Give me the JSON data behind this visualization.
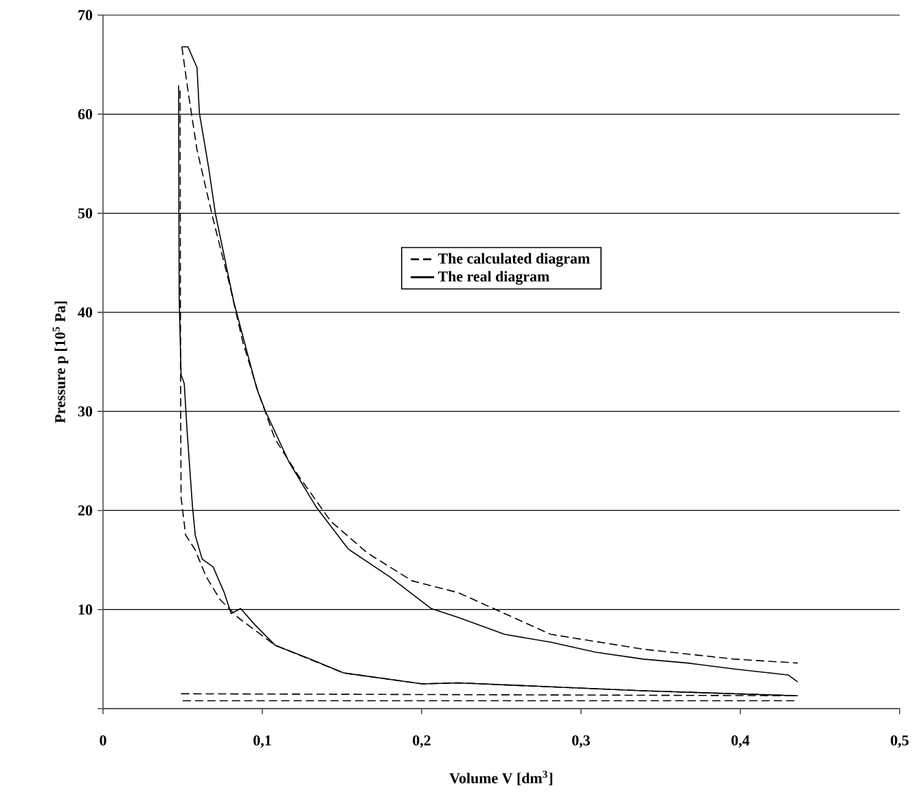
{
  "chart_data": {
    "type": "line",
    "xlabel": "Volume V [dm$^{3}$]",
    "ylabel": "Pressure p [10$^{5}$ Pa]",
    "xlim": [
      0,
      0.5
    ],
    "ylim": [
      0,
      70
    ],
    "xticks": [
      {
        "value": 0,
        "label": "0"
      },
      {
        "value": 0.1,
        "label": "0,1"
      },
      {
        "value": 0.2,
        "label": "0,2"
      },
      {
        "value": 0.3,
        "label": "0,3"
      },
      {
        "value": 0.4,
        "label": "0,4"
      },
      {
        "value": 0.5,
        "label": "0,5"
      }
    ],
    "yticks": [
      {
        "value": 0,
        "label": null
      },
      10,
      20,
      30,
      40,
      50,
      60,
      70
    ],
    "grid": "y",
    "legend": "top",
    "marker": "none",
    "series": [
      {
        "name": "The calculated diagram",
        "color": "#000000",
        "line_style": "dashed",
        "x": [
          0.0495,
          0.0533,
          0.059,
          0.0691,
          0.0793,
          0.0879,
          0.0977,
          0.108,
          0.1227,
          0.143,
          0.166,
          0.194,
          0.223,
          0.281,
          0.339,
          0.396,
          0.436
        ],
        "values": [
          66.8,
          62.4,
          56.4,
          49.4,
          42.9,
          36.9,
          31.8,
          27.2,
          23.5,
          18.9,
          15.7,
          12.9,
          11.7,
          7.5,
          6.0,
          5.0,
          4.6
        ]
      },
      {
        "color": "#000000",
        "line_style": "dashed",
        "x": [
          0.0484,
          0.0486,
          0.0488,
          0.049,
          0.0519,
          0.0576,
          0.0648,
          0.0735,
          0.0847,
          0.108,
          0.151,
          0.2005,
          0.223,
          0.281,
          0.339,
          0.436
        ],
        "values": [
          62.4,
          39.3,
          28.2,
          21.3,
          17.5,
          16.1,
          13.3,
          11.0,
          9.2,
          6.4,
          3.6,
          2.5,
          2.6,
          2.2,
          1.8,
          1.3
        ]
      },
      {
        "color": "#000000",
        "line_style": "dashed",
        "x": [
          0.05,
          0.436
        ],
        "values": [
          0.8,
          0.8
        ]
      },
      {
        "color": "#000000",
        "line_style": "dashed",
        "x": [
          0.049,
          0.436
        ],
        "values": [
          1.5,
          1.3
        ]
      },
      {
        "name": "The real diagram",
        "color": "#000000",
        "line_style": "solid",
        "x": [
          0.0495,
          0.0533,
          0.059,
          0.0605,
          0.0663,
          0.0706,
          0.082,
          0.0965,
          0.102,
          0.1167,
          0.134,
          0.154,
          0.18,
          0.206,
          0.223,
          0.252,
          0.281,
          0.309,
          0.339,
          0.367,
          0.396,
          0.43,
          0.436
        ],
        "values": [
          66.8,
          66.8,
          64.7,
          60.1,
          54.6,
          49.9,
          41.1,
          32.3,
          30.0,
          24.9,
          20.3,
          16.1,
          13.3,
          10.1,
          9.2,
          7.5,
          6.7,
          5.7,
          5.0,
          4.6,
          4.0,
          3.4,
          2.7
        ]
      },
      {
        "color": "#000000",
        "line_style": "solid",
        "x": [
          0.0475,
          0.0476,
          0.0478,
          0.049,
          0.051,
          0.0527,
          0.0562,
          0.0579,
          0.0622,
          0.0691,
          0.0761,
          0.0804,
          0.0864,
          0.0951,
          0.108,
          0.13,
          0.151,
          0.2005,
          0.223,
          0.281,
          0.339,
          0.436
        ],
        "values": [
          62.9,
          50.8,
          41.5,
          33.7,
          32.8,
          28.2,
          20.3,
          17.5,
          15.1,
          14.3,
          11.7,
          9.6,
          10.1,
          8.5,
          6.4,
          5.0,
          3.6,
          2.5,
          2.6,
          2.2,
          1.8,
          1.3
        ]
      }
    ]
  }
}
